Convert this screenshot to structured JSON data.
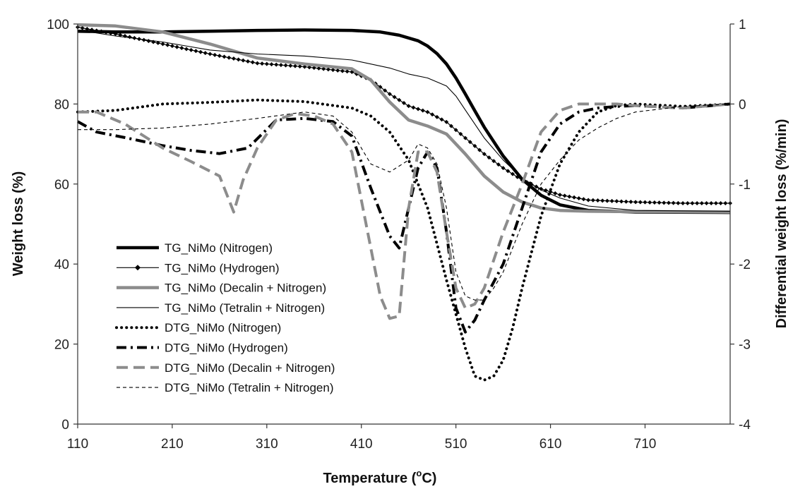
{
  "chart_data": {
    "type": "line",
    "xlabel": "Temperature (",
    "xlabel_sup": "o",
    "xlabel_end": "C)",
    "ylabel": "Weight loss (%)",
    "y2label": "Differential weight loss (%/min)",
    "xlim": [
      110,
      800
    ],
    "ylim": [
      0,
      100
    ],
    "y2lim": [
      -4,
      1
    ],
    "xticks": [
      "110",
      "210",
      "310",
      "410",
      "510",
      "610",
      "710"
    ],
    "yticks": [
      "0",
      "20",
      "40",
      "60",
      "80",
      "100"
    ],
    "y2ticks": [
      "-4",
      "-3",
      "-2",
      "-1",
      "0",
      "1"
    ],
    "grid": false,
    "legend_position": "bottom-left",
    "series": [
      {
        "name": "TG_NiMo (Nitrogen)",
        "axis": "left",
        "color": "#000000",
        "style": "thick-solid",
        "x": [
          110,
          150,
          200,
          250,
          300,
          350,
          400,
          430,
          450,
          470,
          480,
          490,
          500,
          510,
          520,
          530,
          540,
          560,
          580,
          600,
          620,
          650,
          700,
          800
        ],
        "y": [
          98.2,
          98.0,
          98.0,
          98.2,
          98.4,
          98.5,
          98.4,
          98.0,
          97.2,
          95.8,
          94.5,
          92.6,
          90.0,
          86.5,
          82.5,
          78.3,
          74.2,
          67.0,
          61.2,
          57.2,
          54.8,
          53.4,
          53.0,
          52.9
        ]
      },
      {
        "name": "TG_NiMo (Hydrogen)",
        "axis": "left",
        "color": "#000000",
        "style": "thin-diamond",
        "x": [
          110,
          150,
          200,
          250,
          300,
          350,
          400,
          420,
          440,
          460,
          480,
          500,
          520,
          540,
          560,
          580,
          600,
          620,
          650,
          700,
          750,
          800
        ],
        "y": [
          99.2,
          97.5,
          95.0,
          92.5,
          90.2,
          89.3,
          88.0,
          86.0,
          82.5,
          79.5,
          78.0,
          75.5,
          71.5,
          67.5,
          64.0,
          61.0,
          58.8,
          57.3,
          56.0,
          55.5,
          55.2,
          55.2
        ]
      },
      {
        "name": "TG_NiMo (Decalin + Nitrogen)",
        "axis": "left",
        "color": "#8c8c8c",
        "style": "thick-solid",
        "x": [
          110,
          150,
          200,
          250,
          300,
          350,
          400,
          420,
          440,
          460,
          480,
          500,
          520,
          540,
          560,
          580,
          600,
          620,
          650,
          700,
          800
        ],
        "y": [
          99.8,
          99.5,
          98.0,
          95.0,
          91.5,
          90.0,
          88.8,
          86.0,
          80.5,
          76.0,
          74.5,
          72.5,
          67.5,
          62.0,
          58.0,
          55.5,
          54.0,
          53.4,
          53.2,
          53.1,
          53.0
        ]
      },
      {
        "name": "TG_NiMo (Tetralin + Nitrogen)",
        "axis": "left",
        "color": "#000000",
        "style": "thin-solid",
        "x": [
          110,
          150,
          200,
          250,
          300,
          350,
          400,
          440,
          460,
          480,
          500,
          510,
          520,
          540,
          560,
          580,
          600,
          620,
          650,
          700,
          800
        ],
        "y": [
          98.5,
          97.0,
          95.5,
          93.5,
          92.5,
          92.0,
          91.0,
          89.0,
          87.5,
          86.5,
          84.5,
          82.0,
          78.5,
          71.5,
          66.0,
          61.5,
          58.5,
          56.5,
          54.5,
          53.4,
          53.2
        ]
      },
      {
        "name": "DTG_NiMo (Nitrogen)",
        "axis": "right",
        "color": "#000000",
        "style": "dotted",
        "x": [
          110,
          150,
          200,
          250,
          300,
          350,
          400,
          420,
          440,
          460,
          480,
          500,
          520,
          530,
          540,
          550,
          560,
          570,
          580,
          600,
          620,
          640,
          660,
          680,
          700,
          750,
          800
        ],
        "y": [
          -0.1,
          -0.08,
          0.0,
          0.02,
          0.05,
          0.03,
          -0.05,
          -0.15,
          -0.35,
          -0.7,
          -1.3,
          -2.2,
          -3.05,
          -3.4,
          -3.45,
          -3.4,
          -3.2,
          -2.8,
          -2.3,
          -1.4,
          -0.75,
          -0.35,
          -0.1,
          -0.02,
          0.0,
          -0.03,
          0.0
        ]
      },
      {
        "name": "DTG_NiMo (Hydrogen)",
        "axis": "right",
        "color": "#000000",
        "style": "dash-dot",
        "x": [
          110,
          130,
          160,
          200,
          230,
          260,
          290,
          320,
          350,
          380,
          400,
          420,
          440,
          450,
          460,
          470,
          480,
          490,
          500,
          510,
          520,
          530,
          540,
          560,
          580,
          600,
          620,
          640,
          660,
          680,
          700,
          750,
          800
        ],
        "y": [
          -0.22,
          -0.35,
          -0.42,
          -0.52,
          -0.58,
          -0.62,
          -0.55,
          -0.2,
          -0.18,
          -0.22,
          -0.4,
          -1.05,
          -1.65,
          -1.8,
          -1.3,
          -0.8,
          -0.6,
          -0.8,
          -1.6,
          -2.55,
          -2.85,
          -2.7,
          -2.45,
          -2.0,
          -1.3,
          -0.6,
          -0.25,
          -0.1,
          -0.05,
          -0.03,
          -0.02,
          -0.05,
          0.0
        ]
      },
      {
        "name": "DTG_NiMo (Decalin + Nitrogen)",
        "axis": "right",
        "color": "#8c8c8c",
        "style": "long-dash",
        "x": [
          110,
          130,
          160,
          200,
          230,
          260,
          275,
          285,
          300,
          320,
          340,
          360,
          380,
          400,
          410,
          420,
          430,
          440,
          450,
          460,
          470,
          480,
          490,
          500,
          510,
          520,
          530,
          540,
          560,
          580,
          600,
          620,
          640,
          660,
          680,
          700,
          750,
          800
        ],
        "y": [
          -0.1,
          -0.1,
          -0.25,
          -0.55,
          -0.72,
          -0.9,
          -1.35,
          -0.95,
          -0.55,
          -0.2,
          -0.12,
          -0.15,
          -0.25,
          -0.6,
          -1.2,
          -1.8,
          -2.4,
          -2.68,
          -2.65,
          -1.3,
          -0.6,
          -0.6,
          -0.85,
          -1.6,
          -2.3,
          -2.55,
          -2.5,
          -2.3,
          -1.6,
          -1.0,
          -0.35,
          -0.08,
          0.0,
          0.0,
          0.0,
          -0.02,
          -0.05,
          0.0
        ]
      },
      {
        "name": "DTG_NiMo (Tetralin + Nitrogen)",
        "axis": "right",
        "color": "#000000",
        "style": "thin-dash",
        "x": [
          110,
          150,
          200,
          250,
          300,
          350,
          380,
          400,
          420,
          440,
          460,
          470,
          480,
          490,
          500,
          510,
          520,
          530,
          540,
          550,
          560,
          570,
          580,
          600,
          620,
          640,
          660,
          680,
          700,
          750,
          800
        ],
        "y": [
          -0.32,
          -0.32,
          -0.3,
          -0.25,
          -0.18,
          -0.1,
          -0.15,
          -0.35,
          -0.75,
          -0.85,
          -0.7,
          -0.5,
          -0.55,
          -0.75,
          -1.3,
          -2.1,
          -2.4,
          -2.45,
          -2.45,
          -2.3,
          -2.1,
          -1.8,
          -1.5,
          -1.0,
          -0.7,
          -0.45,
          -0.3,
          -0.18,
          -0.1,
          -0.03,
          0.0
        ]
      }
    ]
  }
}
